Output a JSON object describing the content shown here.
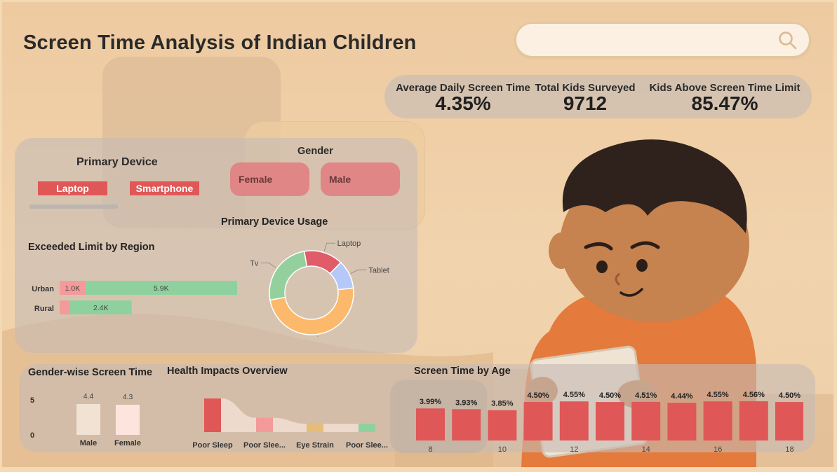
{
  "title": "Screen Time Analysis of Indian Children",
  "search": {
    "value": "",
    "placeholder": ""
  },
  "kpis": [
    {
      "label": "Average Daily Screen Time",
      "value": "4.35%"
    },
    {
      "label": "Total Kids Surveyed",
      "value": "9712"
    },
    {
      "label": "Kids Above Screen Time Limit",
      "value": "85.47%"
    }
  ],
  "primary_device": {
    "title": "Primary Device",
    "options": [
      "Laptop",
      "Smartphone"
    ]
  },
  "gender": {
    "title": "Gender",
    "options": [
      "Female",
      "Male"
    ]
  },
  "colors": {
    "accent_red": "#e05757",
    "pink": "#f49a9a",
    "green": "#8fd19e",
    "donut_laptop": "#e05c69",
    "donut_tablet": "#b6c8f8",
    "donut_smartphone": "#fcb96b",
    "donut_tv": "#93d09d",
    "gender_male": "#f1e2d3",
    "gender_female": "#fde5de"
  },
  "illustration": "boy-with-tablet",
  "chart_data": [
    {
      "id": "exceeded-limit-by-region",
      "type": "bar",
      "orientation": "horizontal",
      "stacked": true,
      "title": "Exceeded Limit by Region",
      "categories": [
        "Urban",
        "Rural"
      ],
      "series": [
        {
          "values": [
            1000,
            400
          ],
          "labels": [
            "1.0K",
            ""
          ],
          "color": "#f49a9a"
        },
        {
          "values": [
            5900,
            2400
          ],
          "labels": [
            "5.9K",
            "2.4K"
          ],
          "color": "#8fd19e"
        }
      ]
    },
    {
      "id": "primary-device-usage",
      "type": "pie",
      "donut": true,
      "title": "Primary Device Usage",
      "labels": [
        "Laptop",
        "Tablet",
        "Smartphone",
        "Tv"
      ],
      "values": [
        15,
        11,
        49,
        25
      ],
      "colors": [
        "#e05c69",
        "#b6c8f8",
        "#fcb96b",
        "#93d09d"
      ]
    },
    {
      "id": "gender-wise-screen-time",
      "type": "bar",
      "title": "Gender-wise Screen Time",
      "categories": [
        "Male",
        "Female"
      ],
      "values": [
        4.4,
        4.3
      ],
      "value_labels": [
        "4.4",
        "4.3"
      ],
      "yticks": [
        "5",
        "0"
      ],
      "ylim": [
        0,
        5
      ],
      "colors": [
        "#f1e2d3",
        "#fde5de"
      ]
    },
    {
      "id": "health-impacts-overview",
      "type": "bar",
      "title": "Health Impacts Overview",
      "categories": [
        "Poor Sleep",
        "Poor Slee...",
        "Eye Strain",
        "Poor Slee..."
      ],
      "values": [
        2260,
        960,
        560,
        560
      ],
      "colors": [
        "#e05757",
        "#f49a9a",
        "#e5bd78",
        "#8fd19e"
      ]
    },
    {
      "id": "screen-time-by-age",
      "type": "bar",
      "title": "Screen Time by Age",
      "categories": [
        "8",
        "9",
        "10",
        "11",
        "12",
        "13",
        "14",
        "15",
        "16",
        "17",
        "18"
      ],
      "xtick_labels": [
        "8",
        "",
        "10",
        "",
        "12",
        "",
        "14",
        "",
        "16",
        "",
        "18"
      ],
      "values": [
        3.99,
        3.93,
        3.85,
        4.5,
        4.55,
        4.5,
        4.51,
        4.44,
        4.55,
        4.56,
        4.5
      ],
      "value_labels": [
        "3.99%",
        "3.93%",
        "3.85%",
        "4.50%",
        "4.55%",
        "4.50%",
        "4.51%",
        "4.44%",
        "4.55%",
        "4.56%",
        "4.50%"
      ],
      "color": "#e05757"
    }
  ]
}
